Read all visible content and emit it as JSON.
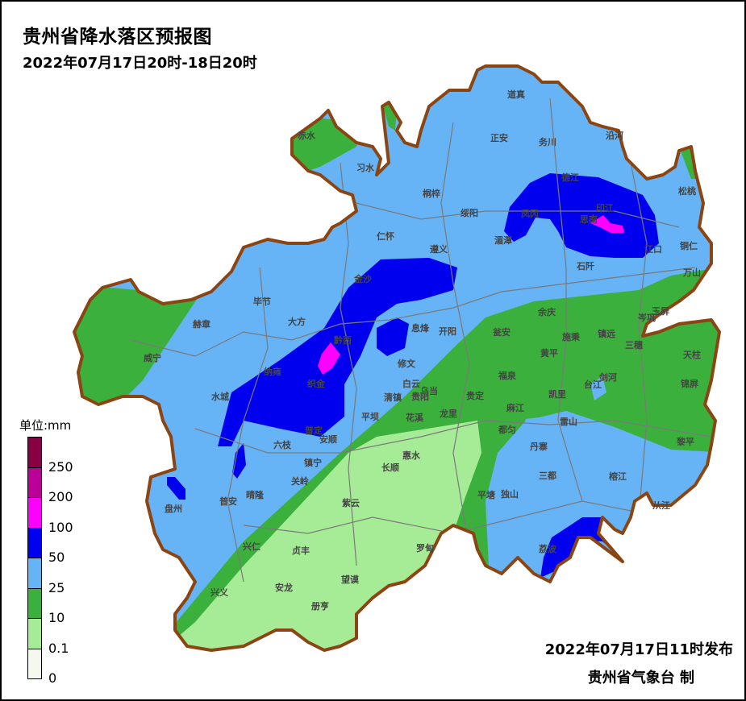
{
  "title": "贵州省降水落区预报图",
  "subtitle": "2022年07月17日20时-18日20时",
  "legend": {
    "unit": "单位:mm",
    "items": [
      {
        "color": "#880044",
        "label": "250"
      },
      {
        "color": "#bb0099",
        "label": "200"
      },
      {
        "color": "#ff00ff",
        "label": "100"
      },
      {
        "color": "#0000ee",
        "label": "50"
      },
      {
        "color": "#66b3f5",
        "label": "25"
      },
      {
        "color": "#3cb03c",
        "label": "10"
      },
      {
        "color": "#a6ec96",
        "label": "0.1"
      },
      {
        "color": "#f5f8ee",
        "label": "0"
      }
    ]
  },
  "colors": {
    "border": "#8b4513",
    "county_line": "#7a7a7a"
  },
  "counties": [
    "赤水",
    "习水",
    "桐梓",
    "绥阳",
    "正安",
    "道真",
    "务川",
    "沿河",
    "德江",
    "松桃",
    "凤冈",
    "湄潭",
    "思南",
    "印江",
    "江口",
    "铜仁",
    "石阡",
    "万山",
    "仁怀",
    "遵义",
    "金沙",
    "毕节",
    "大方",
    "赫章",
    "威宁",
    "黔西",
    "纳雍",
    "织金",
    "水城",
    "息烽",
    "开阳",
    "修文",
    "白云",
    "乌当",
    "贵阳",
    "清镇",
    "平坝",
    "花溪",
    "龙里",
    "贵定",
    "瓮安",
    "余庆",
    "施秉",
    "镇远",
    "三穗",
    "天柱",
    "岑巩",
    "玉屏",
    "黄平",
    "福泉",
    "凯里",
    "台江",
    "剑河",
    "锦屏",
    "麻江",
    "都匀",
    "雷山",
    "丹寨",
    "黎平",
    "三都",
    "榕江",
    "从江",
    "荔波",
    "独山",
    "平塘",
    "惠水",
    "长顺",
    "紫云",
    "罗甸",
    "望谟",
    "册亨",
    "安龙",
    "贞丰",
    "兴仁",
    "兴义",
    "普安",
    "晴隆",
    "关岭",
    "镇宁",
    "六枝",
    "安顺",
    "普定",
    "盘州"
  ],
  "footer": {
    "issued": "2022年07月17日11时发布",
    "agency": "贵州省气象台 制"
  }
}
